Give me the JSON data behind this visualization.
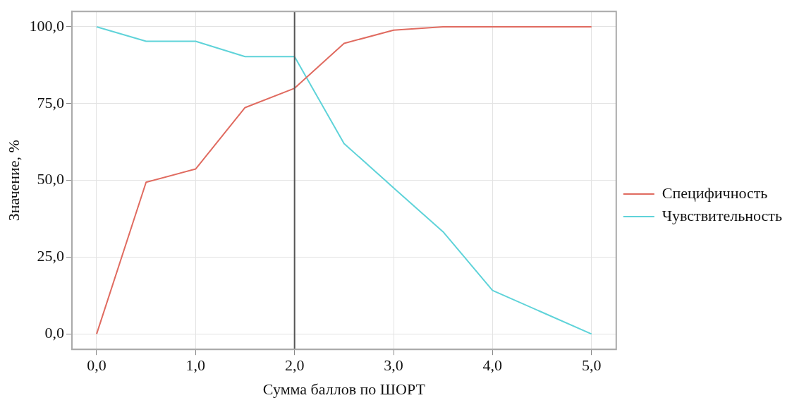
{
  "chart_data": {
    "type": "line",
    "xlabel": "Сумма баллов по ШОРТ",
    "ylabel": "Значение, %",
    "x": [
      0,
      0.5,
      1,
      1.5,
      2,
      2.5,
      3,
      3.5,
      4,
      4.5,
      5
    ],
    "series": [
      {
        "name": "Специфичность",
        "color": "#e06b60",
        "values": [
          0,
          49.4,
          53.7,
          73.7,
          80,
          94.6,
          98.9,
          100,
          100,
          100,
          100
        ]
      },
      {
        "name": "Чувствительность",
        "color": "#5fd3d9",
        "values": [
          100,
          95.3,
          95.3,
          90.3,
          90.3,
          62,
          47.6,
          33.3,
          14.2,
          7.1,
          0
        ]
      }
    ],
    "xlim": [
      -0.25,
      5.25
    ],
    "ylim": [
      -5,
      105
    ],
    "xticks": [
      {
        "value": 0,
        "label": "0,0"
      },
      {
        "value": 1,
        "label": "1,0"
      },
      {
        "value": 2,
        "label": "2,0"
      },
      {
        "value": 3,
        "label": "3,0"
      },
      {
        "value": 4,
        "label": "4,0"
      },
      {
        "value": 5,
        "label": "5,0"
      }
    ],
    "yticks": [
      {
        "value": 0,
        "label": "0,0"
      },
      {
        "value": 25,
        "label": "25,0"
      },
      {
        "value": 50,
        "label": "50,0"
      },
      {
        "value": 75,
        "label": "75,0"
      },
      {
        "value": 100,
        "label": "100,0"
      }
    ],
    "ref_lines": [
      {
        "axis": "x",
        "value": 2,
        "color": "#555555"
      }
    ],
    "grid": true,
    "legend": "right",
    "marker": "none",
    "line_style": "solid"
  }
}
